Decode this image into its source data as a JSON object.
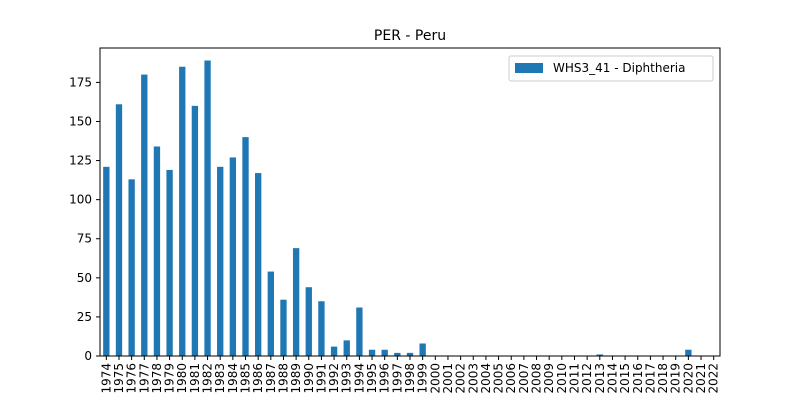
{
  "chart_data": {
    "type": "bar",
    "title": "PER - Peru",
    "xlabel": "",
    "ylabel": "",
    "ylim": [
      0,
      197
    ],
    "yticks": [
      0,
      25,
      50,
      75,
      100,
      125,
      150,
      175
    ],
    "grid": false,
    "legend_position": "top-right",
    "categories": [
      "1974",
      "1975",
      "1976",
      "1977",
      "1978",
      "1979",
      "1980",
      "1981",
      "1982",
      "1983",
      "1984",
      "1985",
      "1986",
      "1987",
      "1988",
      "1989",
      "1990",
      "1991",
      "1992",
      "1993",
      "1994",
      "1995",
      "1996",
      "1997",
      "1998",
      "1999",
      "2000",
      "2001",
      "2002",
      "2003",
      "2004",
      "2005",
      "2006",
      "2007",
      "2008",
      "2009",
      "2010",
      "2011",
      "2012",
      "2013",
      "2014",
      "2015",
      "2016",
      "2017",
      "2018",
      "2019",
      "2020",
      "2021",
      "2022"
    ],
    "series": [
      {
        "name": "WHS3_41 - Diphtheria",
        "color": "#1f77b4",
        "values": [
          121,
          161,
          113,
          180,
          134,
          119,
          185,
          160,
          189,
          121,
          127,
          140,
          117,
          54,
          36,
          69,
          44,
          35,
          6,
          10,
          31,
          4,
          4,
          2,
          2,
          8,
          0,
          0,
          0,
          0,
          0,
          0,
          0,
          0,
          0,
          0,
          0,
          0,
          0,
          1,
          0,
          0,
          0,
          0,
          0,
          0,
          4,
          0,
          0
        ]
      }
    ]
  }
}
